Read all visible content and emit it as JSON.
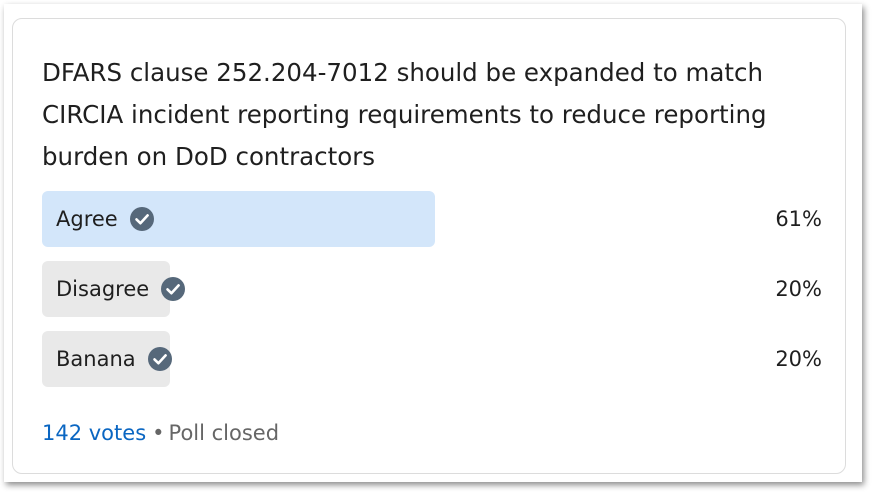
{
  "poll": {
    "question": "DFARS clause 252.204-7012 should be expanded to match CIRCIA incident reporting requirements to reduce reporting burden on DoD contractors",
    "options": [
      {
        "label": "Agree",
        "percent": 61,
        "percent_label": "61%",
        "bar_color": "#d3e6fa",
        "user_selected": true
      },
      {
        "label": "Disagree",
        "percent": 20,
        "percent_label": "20%",
        "bar_color": "#e9e9e9",
        "user_selected": false
      },
      {
        "label": "Banana",
        "percent": 20,
        "percent_label": "20%",
        "bar_color": "#e9e9e9",
        "user_selected": false
      }
    ],
    "check_icon": "check-circle-icon",
    "check_color": "#56687a",
    "votes_label": "142 votes",
    "separator": "•",
    "status": "Poll closed"
  },
  "colors": {
    "link": "#0a66c2",
    "text": "#1f1f1f",
    "muted": "#666666"
  }
}
